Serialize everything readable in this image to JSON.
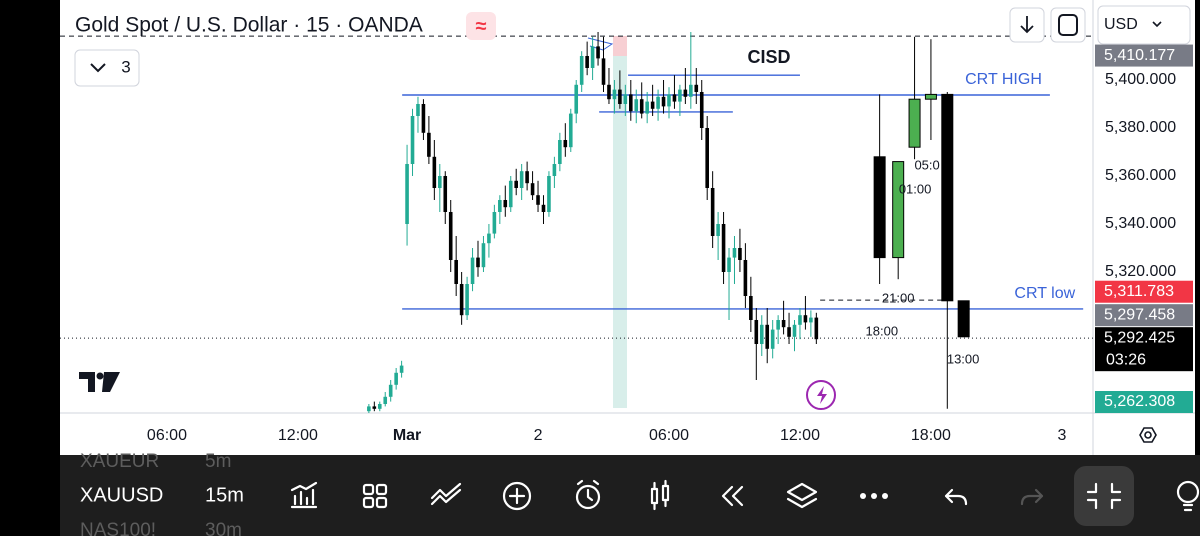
{
  "header": {
    "title": "Gold Spot / U.S. Dollar · 15 · OANDA",
    "indicators_count": "3",
    "currency": "USD"
  },
  "toolbar": {
    "symbols": [
      {
        "symbol": "XAUEUR",
        "interval": "5m"
      },
      {
        "symbol": "XAUUSD",
        "interval": "15m"
      },
      {
        "symbol": "NAS100!",
        "interval": "30m"
      }
    ]
  },
  "chart_data": {
    "type": "candlestick",
    "up_color": "#22ab94",
    "down_color": "#000000",
    "xlim": [
      -19.6,
      169.7
    ],
    "xticks": [
      {
        "value": 0,
        "label": "06:00"
      },
      {
        "value": 24,
        "label": "12:00"
      },
      {
        "value": 44,
        "label": "Mar"
      },
      {
        "value": 68,
        "label": "2"
      },
      {
        "value": 92,
        "label": "06:00"
      },
      {
        "value": 116,
        "label": "12:00"
      },
      {
        "value": 140,
        "label": "18:00"
      },
      {
        "value": 164,
        "label": "3"
      }
    ],
    "ylim": [
      5261.25,
      5433.33
    ],
    "yticks": [
      {
        "value": 5320,
        "label": "5,320.000"
      },
      {
        "value": 5340,
        "label": "5,340.000"
      },
      {
        "value": 5360,
        "label": "5,360.000"
      },
      {
        "value": 5380,
        "label": "5,380.000"
      },
      {
        "value": 5400,
        "label": "5,400.000"
      }
    ],
    "x": [
      37,
      38,
      39,
      40,
      41,
      42,
      43,
      44,
      45,
      46,
      47,
      48,
      49,
      50,
      51,
      52,
      53,
      54,
      55,
      56,
      57,
      58,
      59,
      60,
      61,
      62,
      63,
      64,
      65,
      66,
      67,
      68,
      69,
      70,
      71,
      72,
      73,
      74,
      75,
      76,
      77,
      78,
      79,
      80,
      81,
      82,
      83,
      84,
      85,
      86,
      87,
      88,
      89,
      90,
      91,
      92,
      93,
      94,
      95,
      96,
      97,
      98,
      99,
      100,
      101,
      102,
      103,
      104,
      105,
      106,
      107,
      108,
      109,
      110,
      111,
      112,
      113,
      114,
      115,
      116,
      117,
      118,
      119
    ],
    "ohlc": [
      [
        5262,
        5265,
        5261,
        5264
      ],
      [
        5264,
        5266,
        5262,
        5263
      ],
      [
        5263,
        5266,
        5262,
        5265
      ],
      [
        5265,
        5270,
        5264,
        5268
      ],
      [
        5268,
        5275,
        5266,
        5273
      ],
      [
        5273,
        5280,
        5271,
        5278
      ],
      [
        5278,
        5283,
        5276,
        5281
      ],
      [
        5340,
        5373,
        5331,
        5365
      ],
      [
        5365,
        5388,
        5360,
        5385
      ],
      [
        5385,
        5393,
        5378,
        5390
      ],
      [
        5390,
        5392,
        5375,
        5378
      ],
      [
        5378,
        5385,
        5365,
        5368
      ],
      [
        5368,
        5375,
        5350,
        5355
      ],
      [
        5355,
        5365,
        5345,
        5360
      ],
      [
        5360,
        5362,
        5340,
        5345
      ],
      [
        5345,
        5350,
        5320,
        5325
      ],
      [
        5325,
        5335,
        5310,
        5315
      ],
      [
        5315,
        5320,
        5298,
        5302
      ],
      [
        5302,
        5318,
        5300,
        5315
      ],
      [
        5315,
        5330,
        5312,
        5326
      ],
      [
        5326,
        5333,
        5318,
        5322
      ],
      [
        5322,
        5335,
        5320,
        5332
      ],
      [
        5332,
        5340,
        5326,
        5336
      ],
      [
        5336,
        5348,
        5334,
        5345
      ],
      [
        5345,
        5352,
        5340,
        5350
      ],
      [
        5350,
        5356,
        5343,
        5347
      ],
      [
        5347,
        5360,
        5345,
        5358
      ],
      [
        5358,
        5363,
        5352,
        5355
      ],
      [
        5355,
        5365,
        5350,
        5362
      ],
      [
        5362,
        5366,
        5354,
        5357
      ],
      [
        5357,
        5362,
        5350,
        5352
      ],
      [
        5352,
        5358,
        5345,
        5348
      ],
      [
        5348,
        5352,
        5340,
        5345
      ],
      [
        5345,
        5362,
        5343,
        5360
      ],
      [
        5360,
        5368,
        5355,
        5365
      ],
      [
        5365,
        5378,
        5362,
        5375
      ],
      [
        5375,
        5382,
        5368,
        5372
      ],
      [
        5372,
        5388,
        5370,
        5386
      ],
      [
        5386,
        5400,
        5382,
        5398
      ],
      [
        5398,
        5412,
        5395,
        5410
      ],
      [
        5410,
        5416,
        5402,
        5405
      ],
      [
        5405,
        5418,
        5400,
        5414
      ],
      [
        5414,
        5420,
        5406,
        5409
      ],
      [
        5409,
        5418,
        5395,
        5398
      ],
      [
        5398,
        5405,
        5390,
        5392
      ],
      [
        5392,
        5400,
        5386,
        5396
      ],
      [
        5396,
        5404,
        5388,
        5390
      ],
      [
        5390,
        5398,
        5385,
        5394
      ],
      [
        5394,
        5400,
        5383,
        5387
      ],
      [
        5387,
        5396,
        5382,
        5392
      ],
      [
        5392,
        5399,
        5384,
        5386
      ],
      [
        5386,
        5395,
        5382,
        5391
      ],
      [
        5391,
        5398,
        5385,
        5388
      ],
      [
        5388,
        5396,
        5383,
        5393
      ],
      [
        5393,
        5400,
        5386,
        5389
      ],
      [
        5389,
        5397,
        5384,
        5394
      ],
      [
        5394,
        5402,
        5388,
        5391
      ],
      [
        5391,
        5398,
        5385,
        5396
      ],
      [
        5396,
        5405,
        5390,
        5393
      ],
      [
        5393,
        5420,
        5388,
        5398
      ],
      [
        5398,
        5405,
        5390,
        5395
      ],
      [
        5395,
        5400,
        5375,
        5380
      ],
      [
        5380,
        5385,
        5350,
        5355
      ],
      [
        5355,
        5362,
        5330,
        5335
      ],
      [
        5335,
        5345,
        5325,
        5340
      ],
      [
        5340,
        5345,
        5315,
        5320
      ],
      [
        5320,
        5330,
        5300,
        5326
      ],
      [
        5326,
        5335,
        5315,
        5330
      ],
      [
        5330,
        5338,
        5320,
        5325
      ],
      [
        5325,
        5332,
        5305,
        5310
      ],
      [
        5310,
        5318,
        5295,
        5300
      ],
      [
        5300,
        5305,
        5275,
        5290
      ],
      [
        5290,
        5302,
        5285,
        5298
      ],
      [
        5298,
        5305,
        5282,
        5288
      ],
      [
        5288,
        5300,
        5284,
        5296
      ],
      [
        5296,
        5302,
        5290,
        5300
      ],
      [
        5300,
        5308,
        5294,
        5297
      ],
      [
        5297,
        5303,
        5290,
        5293
      ],
      [
        5293,
        5300,
        5287,
        5298
      ],
      [
        5298,
        5305,
        5292,
        5302
      ],
      [
        5302,
        5310,
        5296,
        5299
      ],
      [
        5299,
        5304,
        5293,
        5301
      ],
      [
        5301,
        5303,
        5290,
        5292
      ]
    ],
    "overlay": {
      "up_color": "#4caf50",
      "down_color": "#000000",
      "x": [
        130.6,
        134,
        137,
        140,
        143,
        146
      ],
      "ohlc": [
        [
          5368,
          5394,
          5315,
          5326
        ],
        [
          5326,
          5366,
          5317,
          5366
        ],
        [
          5372,
          5418,
          5367,
          5392
        ],
        [
          5392,
          5417,
          5375,
          5394
        ],
        [
          5394,
          5395,
          5263,
          5308
        ],
        [
          5308,
          5308,
          5293,
          5293
        ]
      ],
      "labels": [
        {
          "text": "05:0",
          "x": 139.3,
          "price": 5364.2
        },
        {
          "text": "01:00",
          "x": 137.1,
          "price": 5354.2
        },
        {
          "text": "21:00",
          "x": 134,
          "price": 5308.7
        },
        {
          "text": "18:00",
          "x": 131,
          "price": 5295
        },
        {
          "text": "13:00",
          "x": 145.9,
          "price": 5283.3
        }
      ]
    },
    "levels": [
      {
        "label": "CRT HIGH",
        "value": 5393.75,
        "x": [
          43.1,
          161.8
        ],
        "color": "#3a63d8"
      },
      {
        "label": "CRT low",
        "value": 5304.6,
        "x": [
          43.1,
          167.9
        ],
        "color": "#3a63d8"
      },
      {
        "label": "CISD",
        "value": 5402,
        "x": [
          84.5,
          116
        ],
        "color": "#3a63d8"
      },
      {
        "value": 5386.7,
        "x": [
          79.2,
          103.7
        ],
        "color": "#3a63d8"
      }
    ],
    "dashed_lines": [
      {
        "value": 5418.3,
        "x": [
          -19.6,
          169.7
        ]
      },
      {
        "value": 5308.3,
        "x": [
          119.7,
          142.6
        ]
      }
    ],
    "last_price_line": 5292.425,
    "price_badges": [
      {
        "value": 5410.177,
        "label": "5,410.177",
        "color": "#787b86"
      },
      {
        "value": 5311.783,
        "label": "5,311.783",
        "color": "#f23645"
      },
      {
        "value": 5297.458,
        "label": "5,297.458",
        "color": "#787b86"
      },
      {
        "value": 5292.425,
        "label": "5,292.425",
        "color": "#000000",
        "countdown": "03:26"
      },
      {
        "value": 5262.308,
        "label": "5,262.308",
        "color": "#22ab94"
      }
    ]
  }
}
